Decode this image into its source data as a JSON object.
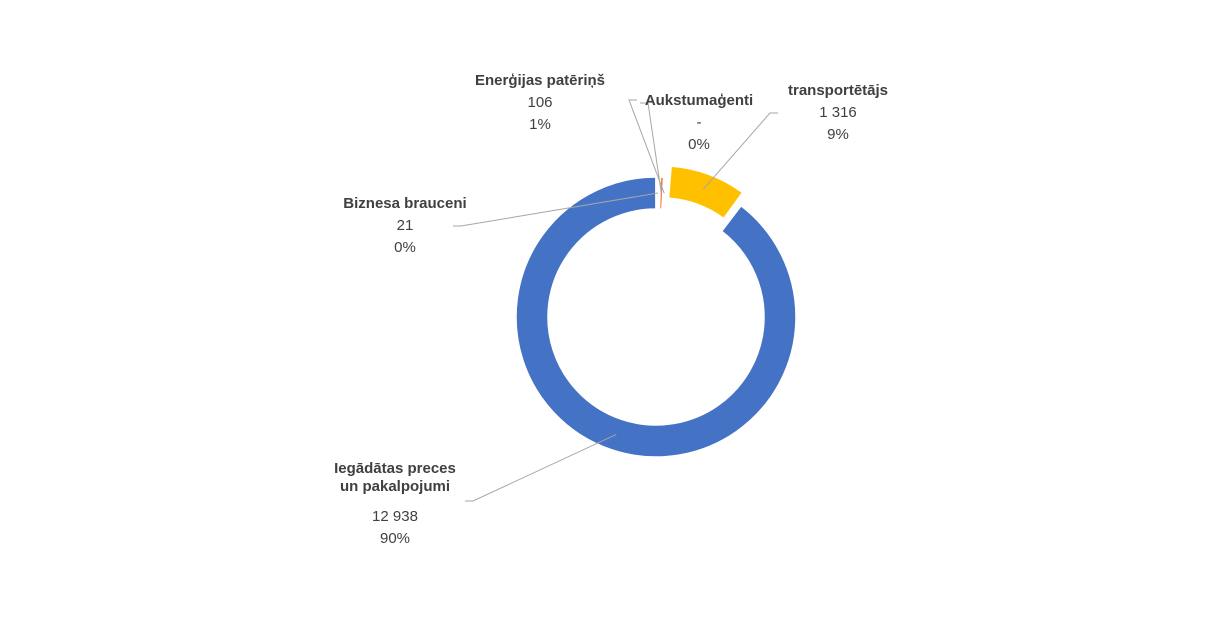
{
  "chart_data": {
    "type": "pie",
    "donut": true,
    "legend": "none",
    "slices": [
      {
        "label": "Energijas patēriņš",
        "name_lines": [
          "Enerģijas patēriņš"
        ],
        "value": 106,
        "value_text": "106",
        "percent_text": "1%",
        "color": "#ed7d31"
      },
      {
        "label": "Aukstumaģenti",
        "name_lines": [
          "Aukstumaģenti"
        ],
        "value": 0,
        "value_text": "-",
        "percent_text": "0%",
        "color": "#a5a5a5"
      },
      {
        "label": "transportētājs",
        "name_lines": [
          "transportētājs"
        ],
        "value": 1316,
        "value_text": "1 316",
        "percent_text": "9%",
        "color": "#ffc000"
      },
      {
        "label": "Iegādātas preces un pakalpojumi",
        "name_lines": [
          "Iegādātas preces",
          "un pakalpojumi"
        ],
        "value": 12938,
        "value_text": "12 938",
        "percent_text": "90%",
        "color": "#4472c4"
      },
      {
        "label": "Biznesa brauceni",
        "name_lines": [
          "Biznesa brauceni"
        ],
        "value": 21,
        "value_text": "21",
        "percent_text": "0%",
        "color": "#5b9bd5"
      }
    ]
  }
}
